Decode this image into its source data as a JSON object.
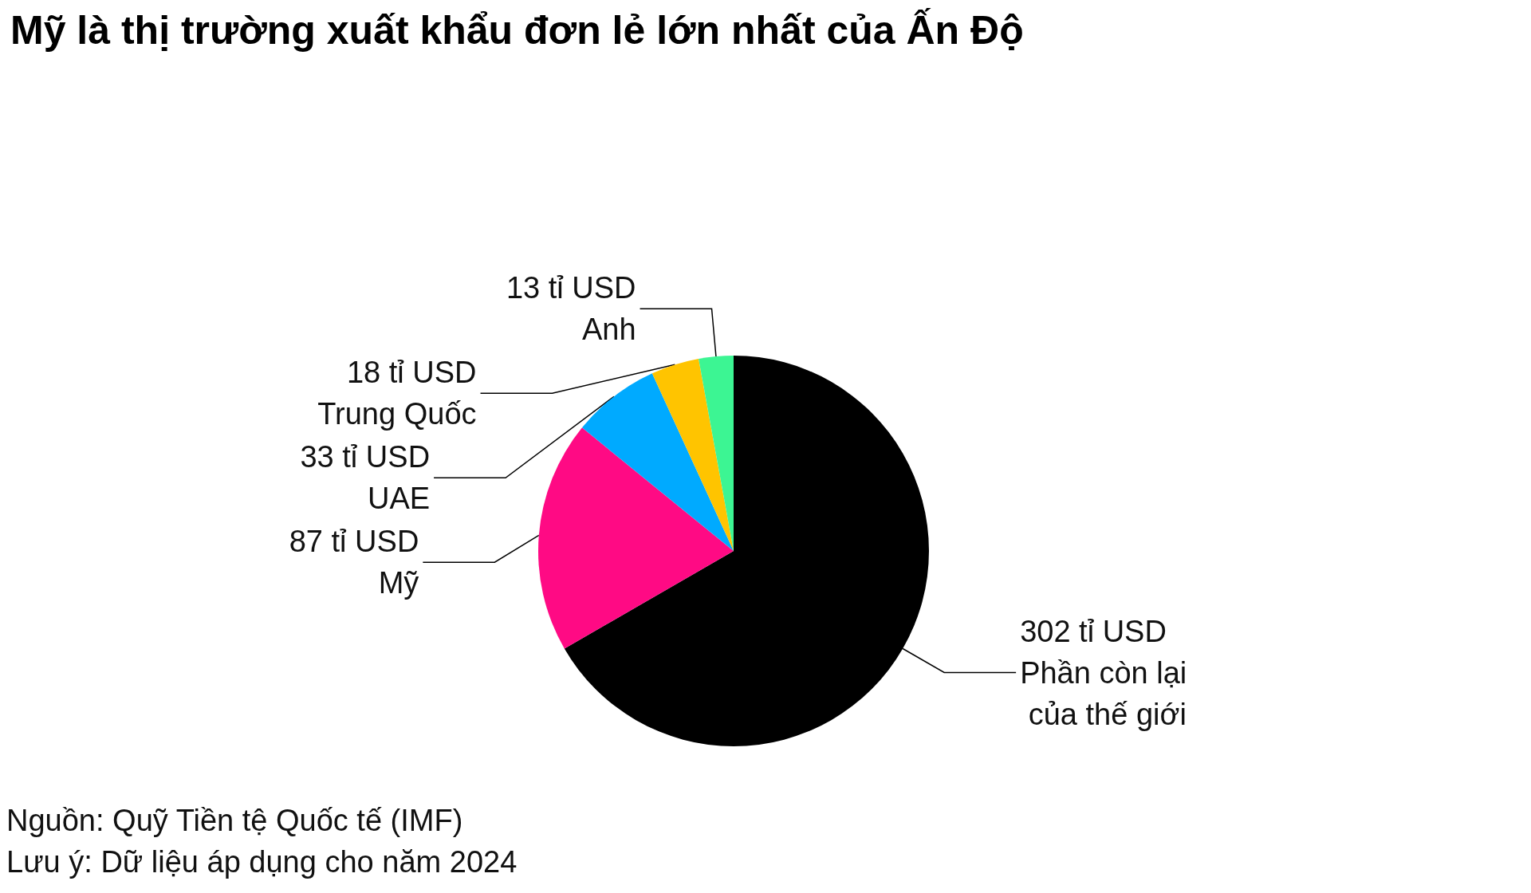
{
  "chart_data": {
    "type": "pie",
    "title": "Mỹ là thị trường xuất khẩu đơn lẻ lớn nhất của Ấn Độ",
    "categories": [
      "Phần còn lại của thế giới",
      "Mỹ",
      "UAE",
      "Trung Quốc",
      "Anh"
    ],
    "values": [
      302,
      87,
      33,
      18,
      13
    ],
    "value_labels": [
      "302 tỉ USD",
      "87 tỉ USD",
      "33 tỉ USD",
      "18 tỉ USD",
      "13 tỉ USD"
    ],
    "colors": [
      "#000000",
      "#ff0a84",
      "#00aaff",
      "#ffc400",
      "#3cf593"
    ],
    "annotations": [
      "Nguồn: Quỹ Tiền tệ Quốc tế (IMF)",
      "Lưu ý: Dữ liệu áp dụng cho năm 2024"
    ]
  }
}
